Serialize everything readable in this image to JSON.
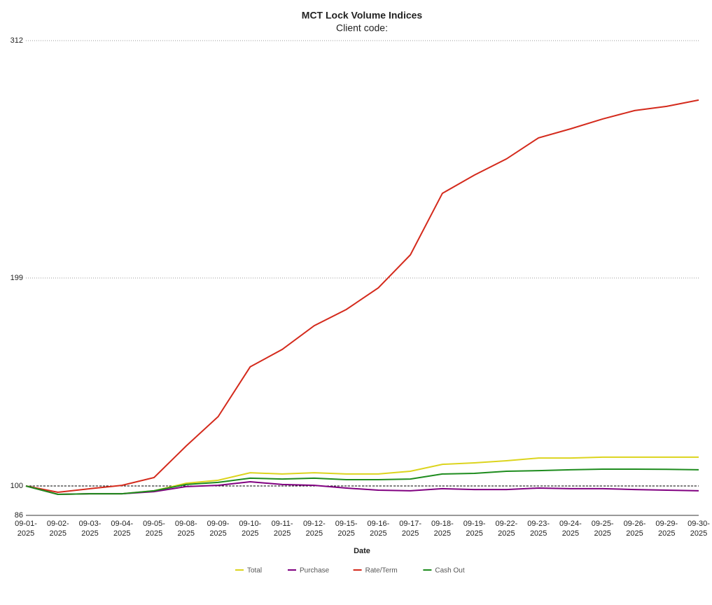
{
  "chart_data": {
    "type": "line",
    "title": "MCT Lock Volume Indices",
    "subtitle": "Client code:",
    "x_label": "Date",
    "categories": [
      "09-01-2025",
      "09-02-2025",
      "09-03-2025",
      "09-04-2025",
      "09-05-2025",
      "09-08-2025",
      "09-09-2025",
      "09-10-2025",
      "09-11-2025",
      "09-12-2025",
      "09-15-2025",
      "09-16-2025",
      "09-17-2025",
      "09-18-2025",
      "09-19-2025",
      "09-22-2025",
      "09-23-2025",
      "09-24-2025",
      "09-25-2025",
      "09-26-2025",
      "09-29-2025",
      "09-30-2025"
    ],
    "series": [
      {
        "name": "Total",
        "color": "#dcd41e",
        "values": [
          100,
          96,
          96.3,
          96.3,
          97.7,
          101.3,
          102.7,
          106.3,
          105.7,
          106.3,
          105.7,
          105.7,
          107,
          110.3,
          111,
          112,
          113.3,
          113.3,
          113.7,
          113.7,
          113.7,
          113.7
        ]
      },
      {
        "name": "Purchase",
        "color": "#800080",
        "values": [
          100,
          96,
          96.3,
          96.3,
          97.3,
          99.7,
          100.3,
          102,
          100.7,
          100.3,
          99,
          98,
          97.7,
          98.7,
          98.3,
          98.3,
          99,
          98.7,
          98.7,
          98.3,
          98,
          97.7
        ]
      },
      {
        "name": "Rate/Term",
        "color": "#d42a1c",
        "values": [
          100,
          97,
          98.7,
          100.3,
          104,
          119,
          133,
          156.7,
          165,
          176.3,
          184,
          194.3,
          210,
          239.3,
          248,
          255.7,
          265.7,
          270,
          274.7,
          278.7,
          280.7,
          283.7
        ]
      },
      {
        "name": "Cash Out",
        "color": "#1e8c1e",
        "values": [
          100,
          96,
          96.3,
          96.3,
          97.7,
          100.7,
          101.7,
          103.7,
          103.3,
          103.7,
          103,
          103,
          103.3,
          105.7,
          106,
          107,
          107.3,
          107.7,
          108,
          108,
          107.9,
          107.7
        ]
      }
    ],
    "ylim": [
      86,
      312
    ],
    "yticks": [
      86,
      100,
      199,
      312
    ],
    "reference_line": 100,
    "grid": true,
    "legend": "bottom"
  }
}
